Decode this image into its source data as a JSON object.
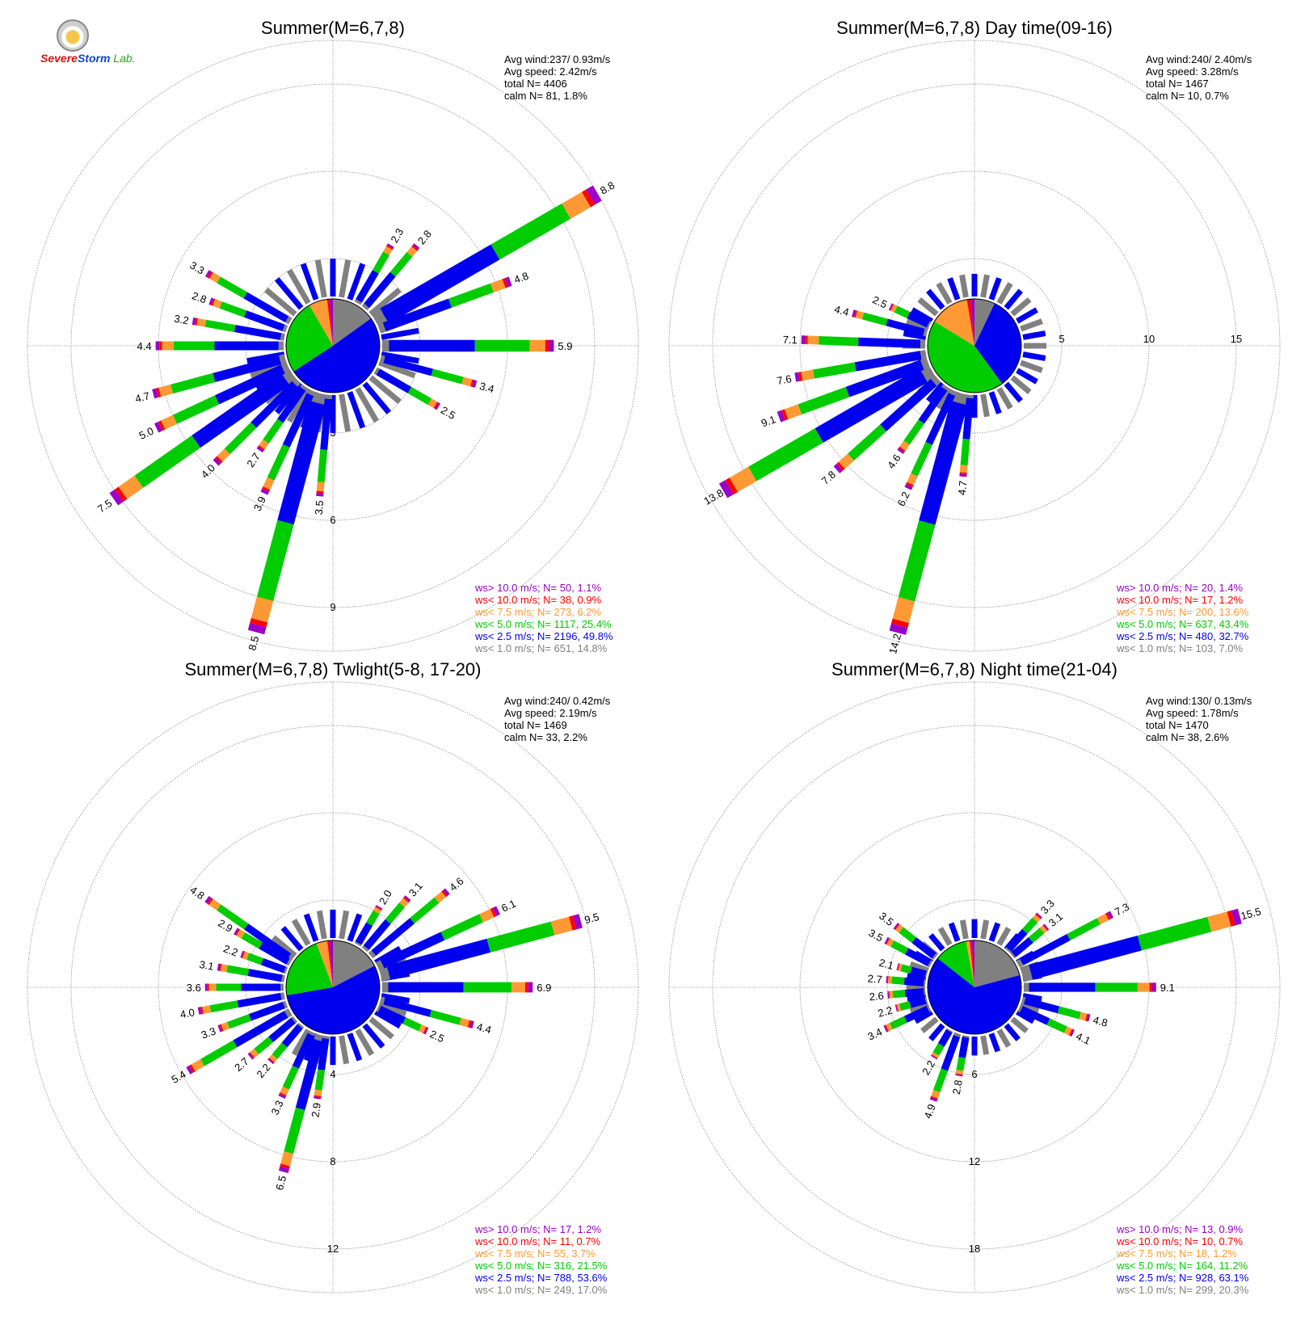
{
  "logo": {
    "part1": "Severe",
    "part2": "Storm",
    "part3": "Lab."
  },
  "legend_colors": {
    "ws_gt_10": "#9a00c8",
    "ws_lt_10": "#ff0000",
    "ws_lt_7_5": "#ff9933",
    "ws_lt_5": "#00cc00",
    "ws_lt_2_5": "#0000ee",
    "ws_lt_1": "#808080"
  },
  "chart_data": [
    {
      "type": "polar-bar",
      "title": "Summer(M=6,7,8)",
      "stats": [
        "Avg wind:237/ 0.93m/s",
        "Avg speed: 2.42m/s",
        "total N=      4406",
        "calm N=     81,   1.8%"
      ],
      "ring_labels": [
        "3",
        "6",
        "9"
      ],
      "rmax": 10.5,
      "bars": [
        {
          "dir": 60,
          "total": 8.8,
          "label": "8.8"
        },
        {
          "dir": 90,
          "total": 5.9,
          "label": "5.9"
        },
        {
          "dir": 70,
          "total": 4.8,
          "label": "4.8"
        },
        {
          "dir": 105,
          "total": 3.4,
          "label": "3.4"
        },
        {
          "dir": 40,
          "total": 2.8,
          "label": "2.8"
        },
        {
          "dir": 30,
          "total": 2.3,
          "label": "2.3"
        },
        {
          "dir": 120,
          "total": 2.5,
          "label": "2.5"
        },
        {
          "dir": 195,
          "total": 8.5,
          "label": "8.5"
        },
        {
          "dir": 235,
          "total": 7.5,
          "label": "7.5"
        },
        {
          "dir": 245,
          "total": 5.0,
          "label": "5.0"
        },
        {
          "dir": 255,
          "total": 4.7,
          "label": "4.7"
        },
        {
          "dir": 270,
          "total": 4.4,
          "label": "4.4"
        },
        {
          "dir": 280,
          "total": 3.2,
          "label": "3.2"
        },
        {
          "dir": 290,
          "total": 2.8,
          "label": "2.8"
        },
        {
          "dir": 300,
          "total": 3.3,
          "label": "3.3"
        },
        {
          "dir": 225,
          "total": 4.0,
          "label": "4.0"
        },
        {
          "dir": 215,
          "total": 2.7,
          "label": "2.7"
        },
        {
          "dir": 205,
          "total": 3.9,
          "label": "3.9"
        },
        {
          "dir": 185,
          "total": 3.5,
          "label": "3.5"
        }
      ],
      "legend": [
        "ws> 10.0 m/s; N=    50,  1.1%",
        "ws< 10.0 m/s; N=    38,  0.9%",
        "ws<  7.5 m/s; N=   273,  6.2%",
        "ws<  5.0 m/s; N=  1117, 25.4%",
        "ws<  2.5 m/s; N=  2196, 49.8%",
        "ws<  1.0 m/s; N=   651, 14.8%"
      ],
      "pie": [
        14.8,
        49.8,
        25.4,
        6.2,
        0.9,
        1.1
      ]
    },
    {
      "type": "polar-bar",
      "title": "Summer(M=6,7,8) Day time(09-16)",
      "stats": [
        "Avg wind:240/ 2.40m/s",
        "Avg speed: 3.28m/s",
        "total N=      1467",
        "calm N=     10,   0.7%"
      ],
      "ring_labels": [
        "5",
        "10",
        "15"
      ],
      "rmax": 17.5,
      "bars": [
        {
          "dir": 195,
          "total": 14.2,
          "label": "14.2"
        },
        {
          "dir": 240,
          "total": 13.8,
          "label": "13.8"
        },
        {
          "dir": 250,
          "total": 9.1,
          "label": "9.1"
        },
        {
          "dir": 260,
          "total": 7.6,
          "label": "7.6"
        },
        {
          "dir": 272,
          "total": 7.1,
          "label": "7.1"
        },
        {
          "dir": 285,
          "total": 4.4,
          "label": "4.4"
        },
        {
          "dir": 295,
          "total": 2.5,
          "label": "2.5"
        },
        {
          "dir": 228,
          "total": 7.8,
          "label": "7.8"
        },
        {
          "dir": 215,
          "total": 4.6,
          "label": "4.6"
        },
        {
          "dir": 205,
          "total": 6.2,
          "label": "6.2"
        },
        {
          "dir": 185,
          "total": 4.7,
          "label": "4.7"
        }
      ],
      "legend": [
        "ws> 10.0 m/s; N=    20,  1.4%",
        "ws< 10.0 m/s; N=    17,  1.2%",
        "ws<  7.5 m/s; N=   200, 13.6%",
        "ws<  5.0 m/s; N=   637, 43.4%",
        "ws<  2.5 m/s; N=   480, 32.7%",
        "ws<  1.0 m/s; N=   103,  7.0%"
      ],
      "pie": [
        7.0,
        32.7,
        43.4,
        13.6,
        1.2,
        1.4
      ]
    },
    {
      "type": "polar-bar",
      "title": "Summer(M=6,7,8) Twlight(5-8, 17-20)",
      "stats": [
        "Avg wind:240/ 0.42m/s",
        "Avg speed: 2.19m/s",
        "total N=      1469",
        "calm N=     33,   2.2%"
      ],
      "ring_labels": [
        "4",
        "8",
        "12"
      ],
      "rmax": 14.0,
      "bars": [
        {
          "dir": 75,
          "total": 9.5,
          "label": "9.5"
        },
        {
          "dir": 90,
          "total": 6.9,
          "label": "6.9"
        },
        {
          "dir": 65,
          "total": 6.1,
          "label": "6.1"
        },
        {
          "dir": 50,
          "total": 4.6,
          "label": "4.6"
        },
        {
          "dir": 105,
          "total": 4.4,
          "label": "4.4"
        },
        {
          "dir": 40,
          "total": 3.1,
          "label": "3.1"
        },
        {
          "dir": 30,
          "total": 2.0,
          "label": "2.0"
        },
        {
          "dir": 115,
          "total": 2.5,
          "label": "2.5"
        },
        {
          "dir": 195,
          "total": 6.5,
          "label": "6.5"
        },
        {
          "dir": 240,
          "total": 5.4,
          "label": "5.4"
        },
        {
          "dir": 305,
          "total": 4.8,
          "label": "4.8"
        },
        {
          "dir": 260,
          "total": 4.0,
          "label": "4.0"
        },
        {
          "dir": 270,
          "total": 3.6,
          "label": "3.6"
        },
        {
          "dir": 280,
          "total": 3.1,
          "label": "3.1"
        },
        {
          "dir": 290,
          "total": 2.2,
          "label": "2.2"
        },
        {
          "dir": 300,
          "total": 2.9,
          "label": "2.9"
        },
        {
          "dir": 250,
          "total": 3.3,
          "label": "3.3"
        },
        {
          "dir": 230,
          "total": 2.7,
          "label": "2.7"
        },
        {
          "dir": 220,
          "total": 2.2,
          "label": "2.2"
        },
        {
          "dir": 205,
          "total": 3.3,
          "label": "3.3"
        },
        {
          "dir": 188,
          "total": 2.9,
          "label": "2.9"
        }
      ],
      "legend": [
        "ws> 10.0 m/s; N=    17,  1.2%",
        "ws< 10.0 m/s; N=    11,  0.7%",
        "ws<  7.5 m/s; N=    55,  3.7%",
        "ws<  5.0 m/s; N=   316, 21.5%",
        "ws<  2.5 m/s; N=   788, 53.6%",
        "ws<  1.0 m/s; N=   249, 17.0%"
      ],
      "pie": [
        17.0,
        53.6,
        21.5,
        3.7,
        0.7,
        1.2
      ]
    },
    {
      "type": "polar-bar",
      "title": "Summer(M=6,7,8) Night time(21-04)",
      "stats": [
        "Avg wind:130/ 0.13m/s",
        "Avg speed: 1.78m/s",
        "total N=      1470",
        "calm N=     38,   2.6%"
      ],
      "ring_labels": [
        "6",
        "12",
        "18"
      ],
      "rmax": 21.0,
      "bars": [
        {
          "dir": 75,
          "total": 15.5,
          "label": "15.5"
        },
        {
          "dir": 90,
          "total": 9.1,
          "label": "9.1"
        },
        {
          "dir": 62,
          "total": 7.3,
          "label": "7.3"
        },
        {
          "dir": 105,
          "total": 4.8,
          "label": "4.8"
        },
        {
          "dir": 115,
          "total": 4.1,
          "label": "4.1"
        },
        {
          "dir": 42,
          "total": 3.3,
          "label": "3.3"
        },
        {
          "dir": 50,
          "total": 3.1,
          "label": "3.1"
        },
        {
          "dir": 200,
          "total": 4.9,
          "label": "4.9"
        },
        {
          "dir": 190,
          "total": 2.8,
          "label": "2.8"
        },
        {
          "dir": 210,
          "total": 2.2,
          "label": "2.2"
        },
        {
          "dir": 245,
          "total": 3.4,
          "label": "3.4"
        },
        {
          "dir": 255,
          "total": 2.2,
          "label": "2.2"
        },
        {
          "dir": 265,
          "total": 2.6,
          "label": "2.6"
        },
        {
          "dir": 275,
          "total": 2.7,
          "label": "2.7"
        },
        {
          "dir": 285,
          "total": 2.1,
          "label": "2.1"
        },
        {
          "dir": 298,
          "total": 3.5,
          "label": "3.5"
        },
        {
          "dir": 308,
          "total": 3.5,
          "label": "3.5"
        }
      ],
      "legend": [
        "ws> 10.0 m/s; N=    13,  0.9%",
        "ws< 10.0 m/s; N=    10,  0.7%",
        "ws<  7.5 m/s; N=    18,  1.2%",
        "ws<  5.0 m/s; N=   164, 11.2%",
        "ws<  2.5 m/s; N=   928, 63.1%",
        "ws<  1.0 m/s; N=   299, 20.3%"
      ],
      "pie": [
        20.3,
        63.1,
        11.2,
        1.2,
        0.7,
        0.9
      ]
    }
  ]
}
